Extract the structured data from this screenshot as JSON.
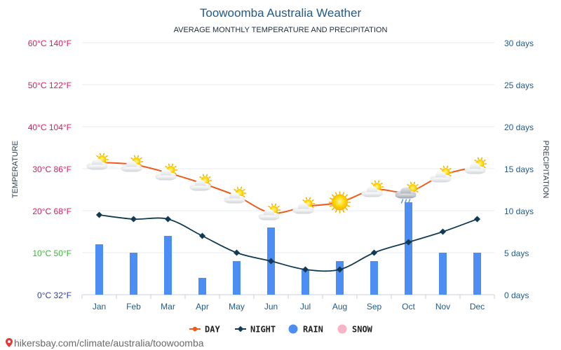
{
  "chart_data": {
    "type": "line",
    "title": "Toowoomba Australia Weather",
    "subtitle": "AVERAGE MONTHLY TEMPERATURE AND PRECIPITATION",
    "categories": [
      "Jan",
      "Feb",
      "Mar",
      "Apr",
      "May",
      "Jun",
      "Jul",
      "Aug",
      "Sep",
      "Oct",
      "Nov",
      "Dec"
    ],
    "series": [
      {
        "name": "DAY",
        "axis": "temperature",
        "unit": "°C",
        "color": "#f05a1a",
        "values": [
          31.5,
          31,
          29,
          26.5,
          23.5,
          19.5,
          21,
          22,
          25,
          24.5,
          28.5,
          30.5
        ]
      },
      {
        "name": "NIGHT",
        "axis": "temperature",
        "unit": "°C",
        "color": "#123b53",
        "values": [
          19,
          18,
          18,
          14,
          10,
          8,
          6,
          6,
          10,
          12.5,
          15,
          18
        ]
      },
      {
        "name": "RAIN",
        "axis": "precipitation",
        "unit": "days",
        "color": "#4d8ef5",
        "values": [
          6,
          5,
          7,
          2,
          4,
          8,
          3,
          4,
          4,
          11,
          5,
          5
        ]
      },
      {
        "name": "SNOW",
        "axis": "precipitation",
        "unit": "days",
        "color": "#f7b4c8",
        "values": [
          0,
          0,
          0,
          0,
          0,
          0,
          0,
          0,
          0,
          0,
          0,
          0
        ]
      }
    ],
    "weather_icons": [
      "partly-cloudy",
      "partly-cloudy",
      "partly-cloudy",
      "partly-cloudy",
      "partly-cloudy",
      "partly-cloudy",
      "partly-cloudy",
      "sunny",
      "partly-cloudy",
      "rain-showers",
      "partly-cloudy",
      "partly-cloudy"
    ],
    "y_left": {
      "label": "TEMPERATURE",
      "ylim": [
        0,
        60
      ],
      "ticks": [
        {
          "value": 0,
          "text": "0°C 32°F",
          "color": "#2c3ea0"
        },
        {
          "value": 10,
          "text": "10°C 50°F",
          "color": "#3ab53a"
        },
        {
          "value": 20,
          "text": "20°C 68°F",
          "color": "#d81b60"
        },
        {
          "value": 30,
          "text": "30°C 86°F",
          "color": "#d81b60"
        },
        {
          "value": 40,
          "text": "40°C 104°F",
          "color": "#d81b60"
        },
        {
          "value": 50,
          "text": "50°C 122°F",
          "color": "#d81b60"
        },
        {
          "value": 60,
          "text": "60°C 140°F",
          "color": "#d81b60"
        }
      ]
    },
    "y_right": {
      "label": "PRECIPITATION",
      "ylim": [
        0,
        30
      ],
      "ticks": [
        {
          "value": 0,
          "text": "0 days"
        },
        {
          "value": 5,
          "text": "5 days"
        },
        {
          "value": 10,
          "text": "10 days"
        },
        {
          "value": 15,
          "text": "15 days"
        },
        {
          "value": 20,
          "text": "20 days"
        },
        {
          "value": 25,
          "text": "25 days"
        },
        {
          "value": 30,
          "text": "30 days"
        }
      ]
    },
    "grid": true,
    "legend_position": "bottom-center"
  },
  "footer": {
    "source": "hikersbay.com/climate/australia/toowoomba"
  }
}
